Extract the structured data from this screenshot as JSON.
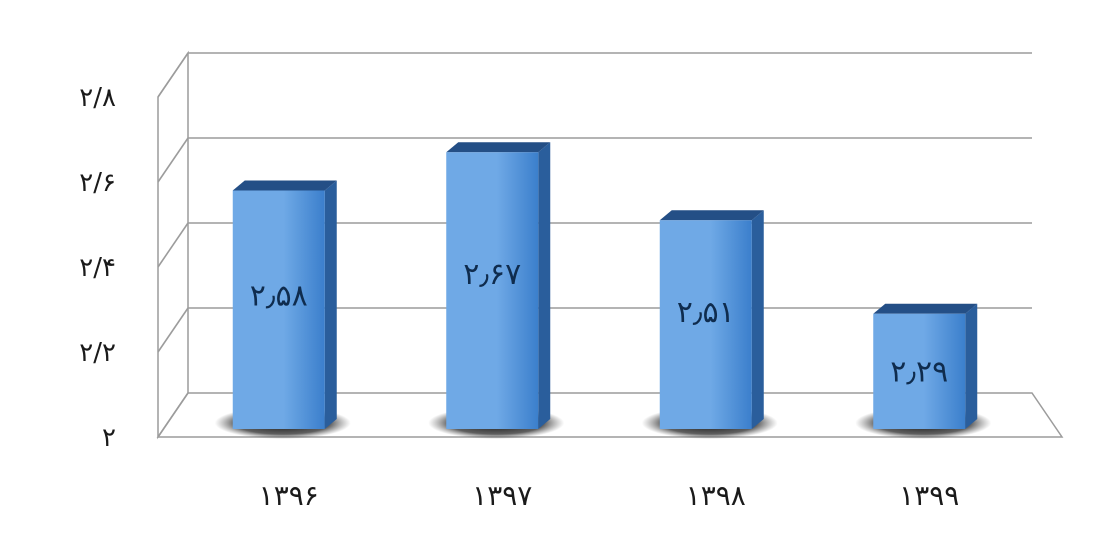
{
  "chart_data": {
    "type": "bar",
    "categories": [
      "۱۳۹۶",
      "۱۳۹۷",
      "۱۳۹۸",
      "۱۳۹۹"
    ],
    "values": [
      2.58,
      2.67,
      2.51,
      2.29
    ],
    "value_labels": [
      "۲٫۵۸",
      "۲٫۶۷",
      "۲٫۵۱",
      "۲٫۲۹"
    ],
    "y_ticks": [
      2,
      2.2,
      2.4,
      2.6,
      2.8
    ],
    "y_tick_labels": [
      "۲",
      "۲/۲",
      "۲/۴",
      "۲/۶",
      "۲/۸"
    ],
    "ylim": [
      2,
      2.8
    ],
    "title": "",
    "xlabel": "",
    "ylabel": "",
    "grid": true,
    "style": "3d-column",
    "colors": {
      "bar_front": "#3b7fcc",
      "bar_front_light": "#6fa9e6",
      "bar_side": "#2a5e9c",
      "bar_top": "#244f86",
      "grid": "#9c9c9c",
      "wall": "#ffffff"
    }
  }
}
